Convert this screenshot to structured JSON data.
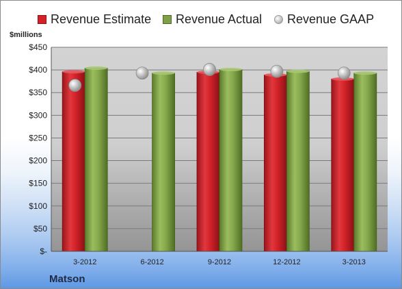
{
  "chart_data": {
    "type": "bar",
    "ylabel": "$millions",
    "ylim": [
      0,
      450
    ],
    "yticks": [
      "$-",
      "$50",
      "$100",
      "$150",
      "$200",
      "$250",
      "$300",
      "$350",
      "$400",
      "$450"
    ],
    "categories": [
      "3-2012",
      "6-2012",
      "9-2012",
      "12-2012",
      "3-2013"
    ],
    "series": [
      {
        "name": "Revenue Estimate",
        "kind": "bar",
        "color": "#d42027",
        "values": [
          396,
          null,
          395,
          389,
          380
        ]
      },
      {
        "name": "Revenue Actual",
        "kind": "bar",
        "color": "#7fa046",
        "values": [
          404,
          393,
          401,
          397,
          393
        ]
      },
      {
        "name": "Revenue GAAP",
        "kind": "marker",
        "color": "#b9b9b9",
        "values": [
          366,
          393,
          401,
          397,
          393
        ]
      }
    ],
    "legend_position": "top",
    "grid": true,
    "company": "Matson"
  }
}
